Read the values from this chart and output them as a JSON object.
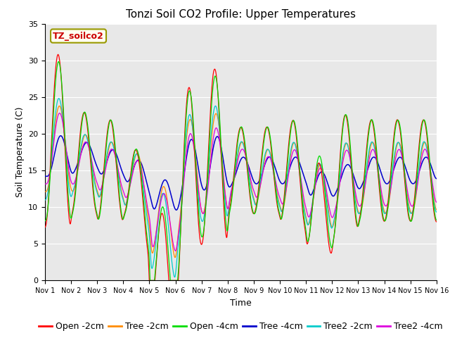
{
  "title": "Tonzi Soil CO2 Profile: Upper Temperatures",
  "ylabel": "Soil Temperature (C)",
  "xlabel": "Time",
  "legend_label": "TZ_soilco2",
  "ylim": [
    0,
    35
  ],
  "xlim": [
    0,
    15
  ],
  "xtick_labels": [
    "Nov 1",
    "Nov 2",
    "Nov 3",
    "Nov 4",
    "Nov 5",
    "Nov 6",
    "Nov 7",
    "Nov 8",
    "Nov 9",
    "Nov 10",
    "Nov 11",
    "Nov 12",
    "Nov 13",
    "Nov 14",
    "Nov 15",
    "Nov 16"
  ],
  "ytick_labels": [
    0,
    5,
    10,
    15,
    20,
    25,
    30,
    35
  ],
  "series": {
    "Open -2cm": {
      "color": "#ff0000"
    },
    "Tree -2cm": {
      "color": "#ff8c00"
    },
    "Open -4cm": {
      "color": "#00dd00"
    },
    "Tree -4cm": {
      "color": "#0000cc"
    },
    "Tree2 -2cm": {
      "color": "#00cccc"
    },
    "Tree2 -4cm": {
      "color": "#dd00dd"
    }
  },
  "background_color": "#e8e8e8",
  "grid_color": "#ffffff",
  "title_fontsize": 11,
  "label_fontsize": 9,
  "tick_fontsize": 8,
  "legend_fontsize": 9
}
